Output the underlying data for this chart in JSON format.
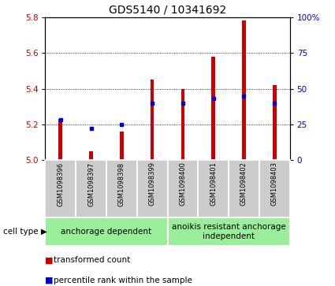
{
  "title": "GDS5140 / 10341692",
  "samples": [
    "GSM1098396",
    "GSM1098397",
    "GSM1098398",
    "GSM1098399",
    "GSM1098400",
    "GSM1098401",
    "GSM1098402",
    "GSM1098403"
  ],
  "bar_values": [
    5.23,
    5.05,
    5.16,
    5.45,
    5.4,
    5.58,
    5.78,
    5.42
  ],
  "bar_bottom": 5.0,
  "percentile_values": [
    28,
    22,
    25,
    40,
    40,
    43,
    45,
    40
  ],
  "ylim_left": [
    5.0,
    5.8
  ],
  "ylim_right": [
    0,
    100
  ],
  "yticks_left": [
    5.0,
    5.2,
    5.4,
    5.6,
    5.8
  ],
  "yticks_right": [
    0,
    25,
    50,
    75,
    100
  ],
  "bar_color": "#cc0000",
  "percentile_color": "#0000cc",
  "grid_color": "#000000",
  "group1_label": "anchorage dependent",
  "group2_label": "anoikis resistant anchorage\nindependent",
  "group1_count": 4,
  "group2_count": 4,
  "group_bg_color": "#99ee99",
  "sample_bg_color": "#cccccc",
  "legend_bar_label": "transformed count",
  "legend_pct_label": "percentile rank within the sample",
  "cell_type_label": "cell type",
  "bar_width": 0.12,
  "title_fontsize": 10,
  "tick_fontsize": 7.5,
  "sample_fontsize": 6.0,
  "group_fontsize": 7.5,
  "legend_fontsize": 7.5
}
